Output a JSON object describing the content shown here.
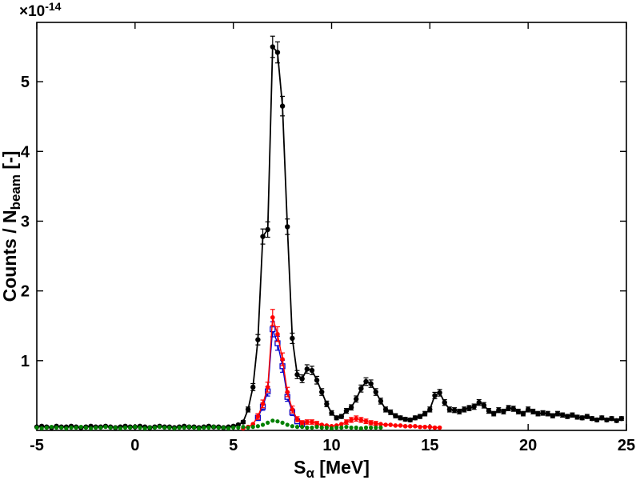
{
  "chart_data": {
    "type": "line",
    "title": "",
    "xlabel": "S_α [MeV]",
    "ylabel": "Counts / N_beam [-]",
    "xlabel_parts": {
      "main": "S",
      "sub": "α",
      "suffix": " [MeV]"
    },
    "ylabel_parts": {
      "main": "Counts / N",
      "sub": "beam",
      "suffix": " [-]"
    },
    "y_multiplier_label": {
      "base": "×10",
      "exponent": "-14"
    },
    "y_unit_scale": 1e-14,
    "xlim": [
      -5,
      25
    ],
    "ylim": [
      0,
      5.85
    ],
    "xticks": [
      -5,
      0,
      5,
      10,
      15,
      20,
      25
    ],
    "yticks": [
      1,
      2,
      3,
      4,
      5
    ],
    "grid": false,
    "legend": "none",
    "x_start": -5,
    "x_step": 0.25,
    "frame_color": "#000000",
    "series": [
      {
        "name": "black-total",
        "color": "#000000",
        "marker": "filled-circle",
        "marker_size": 3.2,
        "line_width": 1.8,
        "err_coeff": 0.065,
        "values": [
          0.05,
          0.06,
          0.05,
          0.04,
          0.06,
          0.05,
          0.05,
          0.06,
          0.05,
          0.04,
          0.05,
          0.06,
          0.05,
          0.05,
          0.06,
          0.05,
          0.04,
          0.05,
          0.06,
          0.05,
          0.05,
          0.06,
          0.05,
          0.04,
          0.05,
          0.06,
          0.05,
          0.05,
          0.04,
          0.05,
          0.06,
          0.05,
          0.05,
          0.04,
          0.05,
          0.06,
          0.05,
          0.05,
          0.04,
          0.05,
          0.06,
          0.08,
          0.12,
          0.3,
          0.62,
          1.3,
          2.78,
          2.88,
          5.5,
          5.42,
          4.65,
          2.92,
          1.32,
          0.8,
          0.74,
          0.88,
          0.86,
          0.72,
          0.55,
          0.38,
          0.25,
          0.18,
          0.2,
          0.28,
          0.33,
          0.45,
          0.6,
          0.7,
          0.67,
          0.55,
          0.42,
          0.3,
          0.26,
          0.21,
          0.18,
          0.16,
          0.15,
          0.18,
          0.2,
          0.24,
          0.3,
          0.5,
          0.54,
          0.4,
          0.3,
          0.29,
          0.27,
          0.3,
          0.32,
          0.34,
          0.4,
          0.36,
          0.28,
          0.24,
          0.29,
          0.27,
          0.32,
          0.31,
          0.27,
          0.24,
          0.3,
          0.27,
          0.24,
          0.25,
          0.24,
          0.21,
          0.24,
          0.22,
          0.2,
          0.22,
          0.19,
          0.18,
          0.2,
          0.17,
          0.15,
          0.18,
          0.15,
          0.17,
          0.14,
          0.17,
          null
        ]
      },
      {
        "name": "blue-open-squares",
        "color": "#0000cc",
        "marker": "open-square",
        "marker_size": 6,
        "line_width": 1.3,
        "err_coeff": 0.09,
        "values": [
          null,
          null,
          null,
          null,
          null,
          null,
          null,
          null,
          null,
          null,
          null,
          null,
          null,
          null,
          null,
          null,
          null,
          null,
          null,
          null,
          null,
          null,
          null,
          null,
          null,
          null,
          null,
          null,
          null,
          null,
          null,
          null,
          null,
          null,
          null,
          null,
          null,
          null,
          null,
          null,
          null,
          null,
          null,
          null,
          null,
          0.18,
          0.34,
          0.56,
          1.45,
          1.25,
          0.92,
          0.48,
          0.26,
          0.13,
          0.09,
          null,
          null,
          null,
          null,
          null,
          null,
          null,
          null,
          null,
          null,
          null,
          null,
          null,
          null,
          null,
          null,
          null,
          null,
          null,
          null,
          null,
          null,
          null,
          null,
          null,
          null,
          null,
          null,
          null,
          null,
          null,
          null,
          null,
          null,
          null,
          null,
          null,
          null,
          null,
          null,
          null,
          null,
          null,
          null,
          null,
          null,
          null,
          null,
          null,
          null,
          null,
          null,
          null,
          null,
          null,
          null,
          null,
          null,
          null,
          null,
          null,
          null,
          null,
          null,
          null,
          null
        ]
      },
      {
        "name": "red-dots",
        "color": "#ff0000",
        "marker": "filled-circle",
        "marker_size": 2.8,
        "line_width": 1.4,
        "err_coeff": 0.09,
        "values": [
          null,
          null,
          null,
          null,
          null,
          null,
          null,
          null,
          null,
          null,
          null,
          null,
          null,
          null,
          null,
          null,
          null,
          null,
          null,
          null,
          null,
          null,
          null,
          null,
          null,
          null,
          null,
          null,
          null,
          null,
          null,
          null,
          null,
          null,
          null,
          null,
          null,
          null,
          null,
          null,
          null,
          null,
          0.03,
          0.05,
          0.09,
          0.2,
          0.38,
          0.62,
          1.62,
          1.38,
          1.02,
          0.55,
          0.3,
          0.16,
          0.11,
          0.12,
          0.12,
          0.1,
          0.08,
          0.07,
          0.06,
          0.07,
          0.09,
          0.12,
          0.15,
          0.17,
          0.15,
          0.13,
          0.11,
          0.1,
          0.09,
          0.08,
          0.08,
          0.07,
          0.07,
          0.06,
          0.06,
          0.06,
          0.05,
          0.05,
          0.05,
          0.04,
          0.04,
          null,
          null,
          null,
          null,
          null,
          null,
          null,
          null,
          null,
          null,
          null,
          null,
          null,
          null,
          null,
          null,
          null,
          null,
          null,
          null,
          null,
          null,
          null,
          null,
          null,
          null,
          null,
          null,
          null,
          null,
          null,
          null,
          null,
          null,
          null,
          null,
          null,
          null
        ]
      },
      {
        "name": "green-dots",
        "color": "#008000",
        "marker": "filled-circle",
        "marker_size": 2.6,
        "line_width": 0,
        "err_coeff": 0,
        "values": [
          0.04,
          0.03,
          0.04,
          0.05,
          0.04,
          0.04,
          0.03,
          0.04,
          0.04,
          0.05,
          0.04,
          0.03,
          0.04,
          0.04,
          0.05,
          0.04,
          0.04,
          0.03,
          0.04,
          0.04,
          0.05,
          0.04,
          0.03,
          0.04,
          0.04,
          0.05,
          0.04,
          0.04,
          0.03,
          0.04,
          0.04,
          0.05,
          0.04,
          0.03,
          0.04,
          0.04,
          0.05,
          0.04,
          0.04,
          0.03,
          0.04,
          0.04,
          0.05,
          0.04,
          0.05,
          0.06,
          0.08,
          0.11,
          0.14,
          0.13,
          0.11,
          0.08,
          0.06,
          0.05,
          0.05,
          0.04,
          0.04,
          0.05,
          0.04,
          0.04,
          0.03,
          0.04,
          0.04,
          0.05,
          0.04,
          0.04,
          0.03,
          0.04,
          0.04,
          0.04,
          0.04,
          null,
          null,
          null,
          null,
          null,
          null,
          null,
          null,
          null,
          null,
          null,
          null,
          null,
          null,
          null,
          null,
          null,
          null,
          null,
          null,
          null,
          null,
          null,
          null,
          null,
          null,
          null,
          null,
          null,
          null,
          null,
          null,
          null,
          null,
          null,
          null,
          null,
          null,
          null,
          null,
          null,
          null,
          null,
          null,
          null,
          null,
          null,
          null,
          null,
          null
        ]
      }
    ]
  }
}
